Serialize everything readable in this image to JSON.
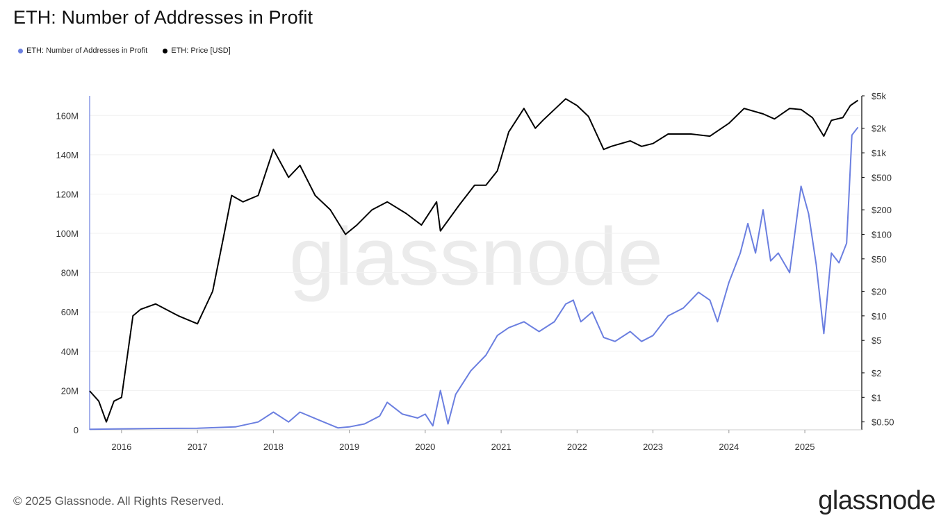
{
  "title": "ETH: Number of Addresses in Profit",
  "footer": {
    "copyright": "© 2025 Glassnode. All Rights Reserved.",
    "brand": "glassnode"
  },
  "watermark": "glassnode",
  "chart_data": {
    "type": "line",
    "title": "ETH: Number of Addresses in Profit",
    "legend_placement": "top-left",
    "grid": true,
    "x_ticks": [
      "2016",
      "2017",
      "2018",
      "2019",
      "2020",
      "2021",
      "2022",
      "2023",
      "2024",
      "2025"
    ],
    "x_range": [
      2015.58,
      2025.75
    ],
    "y_left": {
      "ticks": [
        "0",
        "20M",
        "40M",
        "60M",
        "80M",
        "100M",
        "120M",
        "140M",
        "160M"
      ],
      "range": [
        0,
        170000000
      ]
    },
    "y_right": {
      "scale": "log",
      "ticks": [
        "$0.50",
        "$1",
        "$2",
        "$5",
        "$10",
        "$20",
        "$50",
        "$100",
        "$200",
        "$500",
        "$1k",
        "$2k",
        "$5k"
      ],
      "tick_values": [
        0.5,
        1,
        2,
        5,
        10,
        20,
        50,
        100,
        200,
        500,
        1000,
        2000,
        5000
      ],
      "range": [
        0.4,
        5000
      ]
    },
    "series": [
      {
        "name": "ETH: Number of Addresses in Profit",
        "color": "#6b7fe0",
        "axis": "left",
        "x": [
          2015.58,
          2016.0,
          2016.5,
          2017.0,
          2017.5,
          2017.8,
          2018.0,
          2018.2,
          2018.35,
          2018.6,
          2018.85,
          2019.0,
          2019.2,
          2019.4,
          2019.5,
          2019.7,
          2019.9,
          2020.0,
          2020.1,
          2020.2,
          2020.3,
          2020.4,
          2020.6,
          2020.8,
          2020.95,
          2021.1,
          2021.3,
          2021.5,
          2021.7,
          2021.85,
          2021.95,
          2022.05,
          2022.2,
          2022.35,
          2022.5,
          2022.7,
          2022.85,
          2023.0,
          2023.2,
          2023.4,
          2023.6,
          2023.75,
          2023.85,
          2024.0,
          2024.15,
          2024.25,
          2024.35,
          2024.45,
          2024.55,
          2024.65,
          2024.8,
          2024.95,
          2025.05,
          2025.15,
          2025.25,
          2025.35,
          2025.45,
          2025.55,
          2025.62,
          2025.7
        ],
        "y": [
          300000,
          500000,
          700000,
          800000,
          1500000,
          4000000,
          9000000,
          4000000,
          9000000,
          5000000,
          1000000,
          1500000,
          3000000,
          7000000,
          14000000,
          8000000,
          6000000,
          8000000,
          2000000,
          20000000,
          3000000,
          18000000,
          30000000,
          38000000,
          48000000,
          52000000,
          55000000,
          50000000,
          55000000,
          64000000,
          66000000,
          55000000,
          60000000,
          47000000,
          45000000,
          50000000,
          45000000,
          48000000,
          58000000,
          62000000,
          70000000,
          66000000,
          55000000,
          75000000,
          90000000,
          105000000,
          90000000,
          112000000,
          86000000,
          90000000,
          80000000,
          124000000,
          110000000,
          84000000,
          49000000,
          90000000,
          85000000,
          95000000,
          150000000,
          154000000
        ]
      },
      {
        "name": "ETH: Price [USD]",
        "color": "#000000",
        "axis": "right",
        "x": [
          2015.58,
          2015.7,
          2015.8,
          2015.9,
          2016.0,
          2016.15,
          2016.25,
          2016.45,
          2016.75,
          2017.0,
          2017.2,
          2017.35,
          2017.45,
          2017.6,
          2017.8,
          2018.0,
          2018.2,
          2018.35,
          2018.55,
          2018.75,
          2018.95,
          2019.1,
          2019.3,
          2019.5,
          2019.75,
          2019.95,
          2020.15,
          2020.2,
          2020.45,
          2020.65,
          2020.8,
          2020.95,
          2021.1,
          2021.3,
          2021.45,
          2021.55,
          2021.85,
          2022.0,
          2022.15,
          2022.35,
          2022.45,
          2022.7,
          2022.85,
          2023.0,
          2023.2,
          2023.5,
          2023.75,
          2024.0,
          2024.2,
          2024.45,
          2024.6,
          2024.8,
          2024.95,
          2025.1,
          2025.25,
          2025.35,
          2025.5,
          2025.6,
          2025.7
        ],
        "y": [
          1.2,
          0.9,
          0.5,
          0.9,
          1.0,
          10,
          12,
          14,
          10,
          8,
          20,
          100,
          300,
          250,
          300,
          1100,
          500,
          700,
          300,
          200,
          100,
          130,
          200,
          250,
          180,
          130,
          250,
          110,
          230,
          400,
          400,
          600,
          1800,
          3500,
          2000,
          2500,
          4600,
          3800,
          2800,
          1100,
          1200,
          1400,
          1200,
          1300,
          1700,
          1700,
          1600,
          2300,
          3500,
          3000,
          2600,
          3500,
          3400,
          2700,
          1600,
          2500,
          2700,
          3800,
          4400
        ]
      }
    ]
  }
}
